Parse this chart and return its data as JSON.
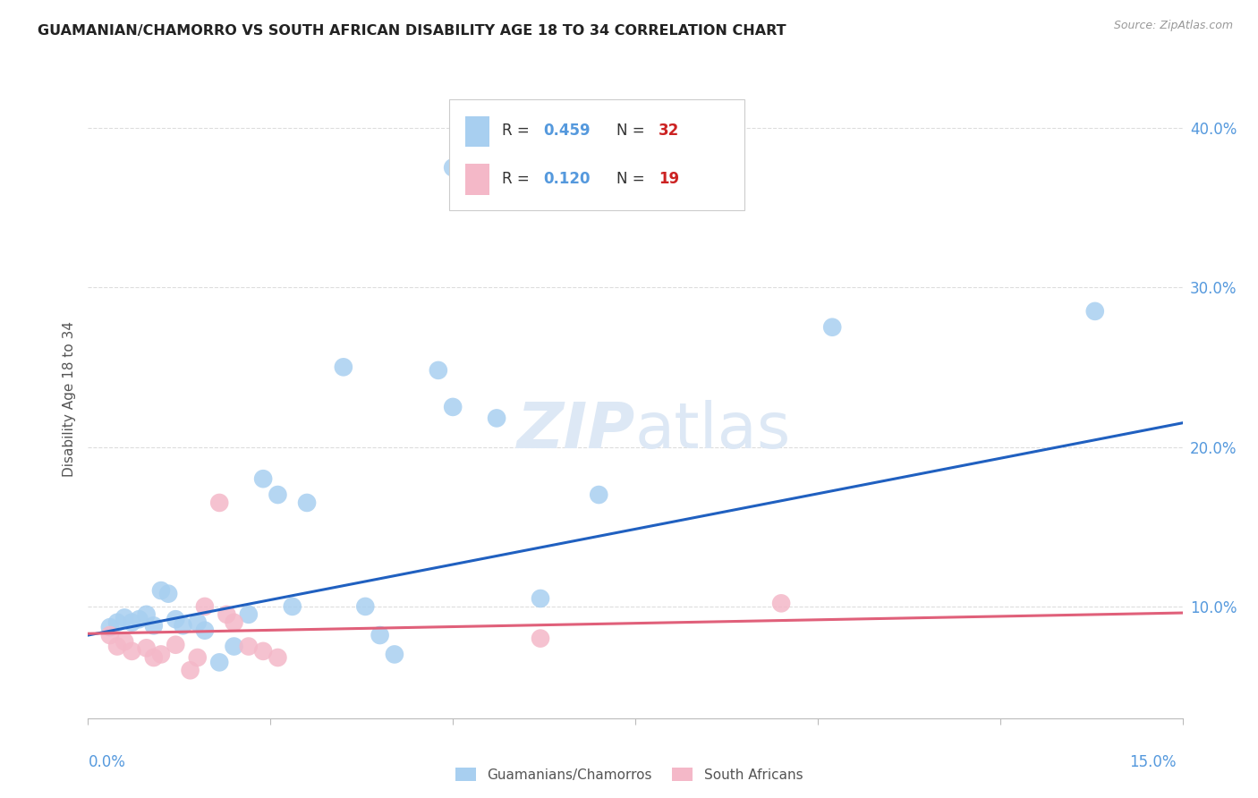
{
  "title": "GUAMANIAN/CHAMORRO VS SOUTH AFRICAN DISABILITY AGE 18 TO 34 CORRELATION CHART",
  "source": "Source: ZipAtlas.com",
  "ylabel": "Disability Age 18 to 34",
  "xlim": [
    0.0,
    0.15
  ],
  "ylim": [
    0.03,
    0.43
  ],
  "yticks": [
    0.1,
    0.2,
    0.3,
    0.4
  ],
  "ytick_labels": [
    "10.0%",
    "20.0%",
    "30.0%",
    "40.0%"
  ],
  "legend_label_blue": "Guamanians/Chamorros",
  "legend_label_pink": "South Africans",
  "blue_color": "#a8cff0",
  "pink_color": "#f4b8c8",
  "blue_line_color": "#2060c0",
  "pink_line_color": "#e0607a",
  "tick_label_color": "#5599dd",
  "watermark_color": "#dde8f5",
  "blue_points": [
    [
      0.003,
      0.087
    ],
    [
      0.004,
      0.09
    ],
    [
      0.005,
      0.093
    ],
    [
      0.006,
      0.09
    ],
    [
      0.007,
      0.092
    ],
    [
      0.008,
      0.095
    ],
    [
      0.009,
      0.088
    ],
    [
      0.01,
      0.11
    ],
    [
      0.011,
      0.108
    ],
    [
      0.012,
      0.092
    ],
    [
      0.013,
      0.088
    ],
    [
      0.015,
      0.09
    ],
    [
      0.016,
      0.085
    ],
    [
      0.018,
      0.065
    ],
    [
      0.02,
      0.075
    ],
    [
      0.022,
      0.095
    ],
    [
      0.024,
      0.18
    ],
    [
      0.026,
      0.17
    ],
    [
      0.028,
      0.1
    ],
    [
      0.03,
      0.165
    ],
    [
      0.035,
      0.25
    ],
    [
      0.038,
      0.1
    ],
    [
      0.04,
      0.082
    ],
    [
      0.042,
      0.07
    ],
    [
      0.048,
      0.248
    ],
    [
      0.05,
      0.225
    ],
    [
      0.05,
      0.375
    ],
    [
      0.056,
      0.218
    ],
    [
      0.062,
      0.105
    ],
    [
      0.07,
      0.17
    ],
    [
      0.102,
      0.275
    ],
    [
      0.138,
      0.285
    ]
  ],
  "pink_points": [
    [
      0.003,
      0.082
    ],
    [
      0.004,
      0.075
    ],
    [
      0.005,
      0.078
    ],
    [
      0.006,
      0.072
    ],
    [
      0.008,
      0.074
    ],
    [
      0.009,
      0.068
    ],
    [
      0.01,
      0.07
    ],
    [
      0.012,
      0.076
    ],
    [
      0.014,
      0.06
    ],
    [
      0.015,
      0.068
    ],
    [
      0.016,
      0.1
    ],
    [
      0.018,
      0.165
    ],
    [
      0.019,
      0.095
    ],
    [
      0.02,
      0.09
    ],
    [
      0.022,
      0.075
    ],
    [
      0.024,
      0.072
    ],
    [
      0.026,
      0.068
    ],
    [
      0.062,
      0.08
    ],
    [
      0.095,
      0.102
    ]
  ],
  "blue_trendline_x": [
    0.0,
    0.15
  ],
  "blue_trendline_y": [
    0.082,
    0.215
  ],
  "pink_trendline_x": [
    0.0,
    0.15
  ],
  "pink_trendline_y": [
    0.083,
    0.096
  ]
}
